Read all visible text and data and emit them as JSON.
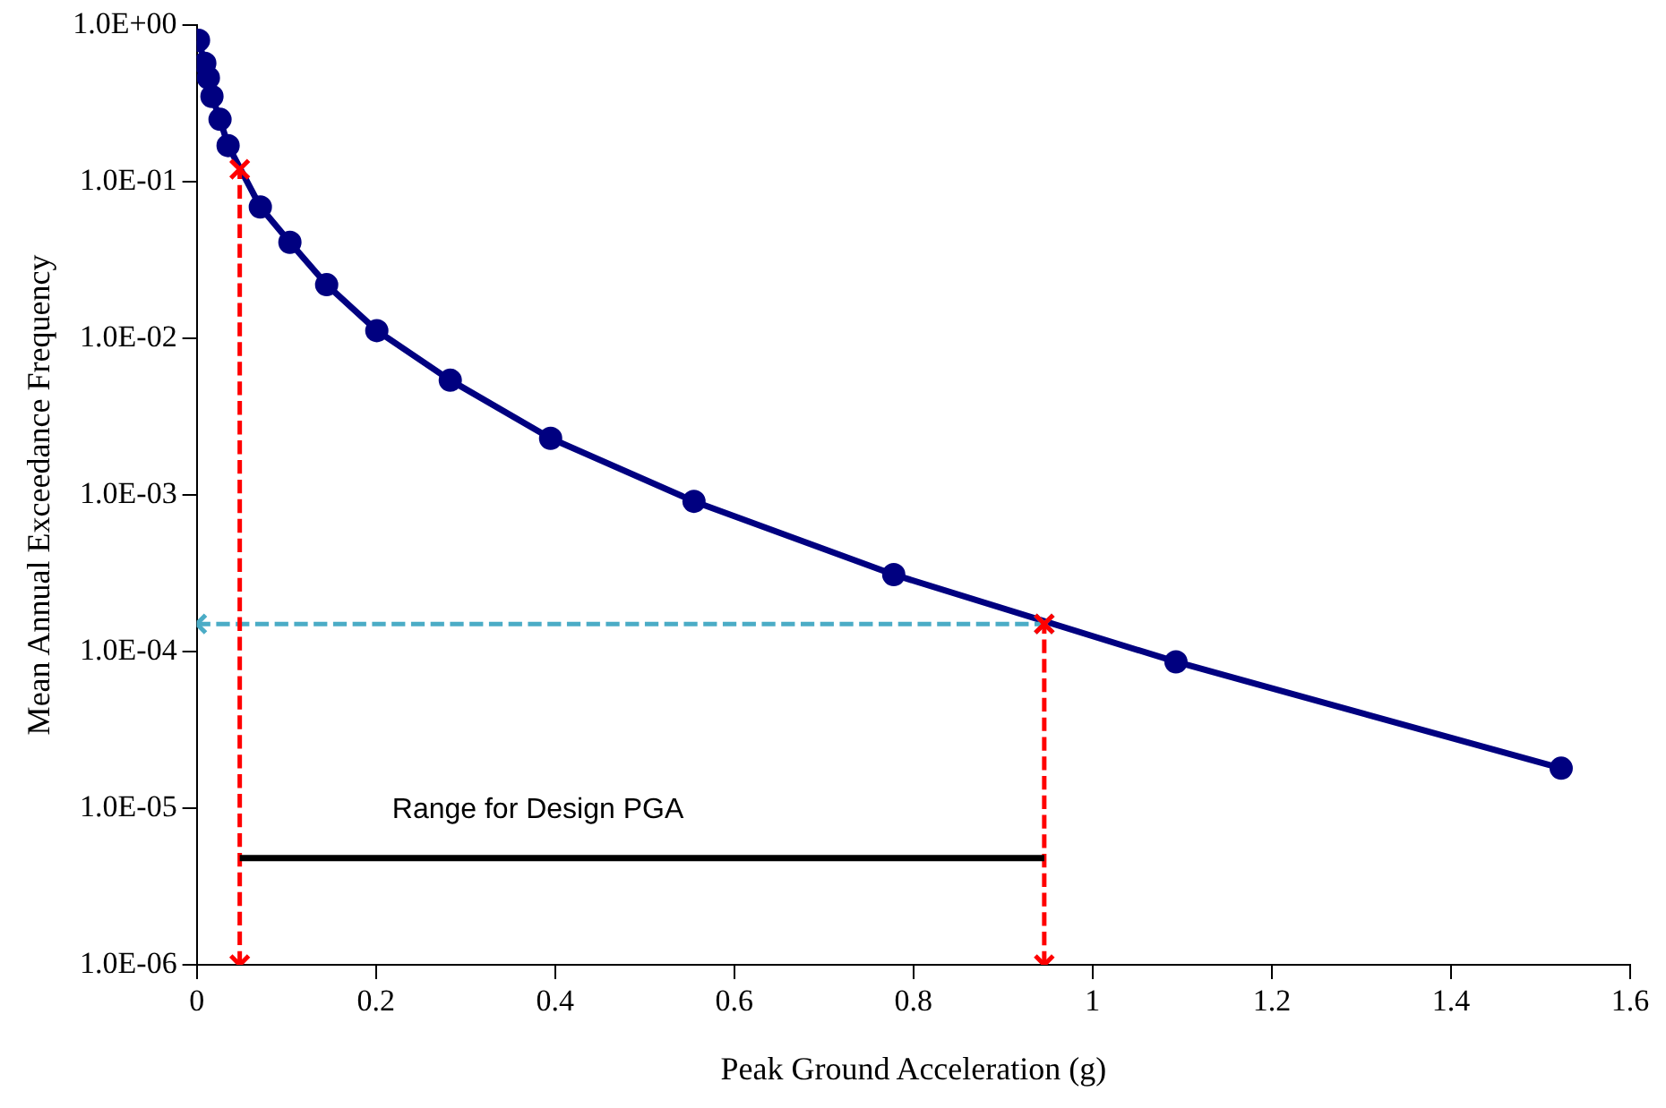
{
  "chart_data": {
    "type": "line",
    "xlabel": "Peak Ground Acceleration (g)",
    "ylabel": "Mean Annual Exceedance Frequency",
    "log": "y",
    "grid": false,
    "legend": false,
    "xlim": [
      0,
      1.6
    ],
    "xticks": [
      0,
      0.2,
      0.4,
      0.6,
      0.8,
      1,
      1.2,
      1.4,
      1.6
    ],
    "ylim": [
      1e-06,
      1
    ],
    "yticks": [
      {
        "value": 1e-06,
        "label": "1.0E-06"
      },
      {
        "value": 1e-05,
        "label": "1.0E-05"
      },
      {
        "value": 0.0001,
        "label": "1.0E-04"
      },
      {
        "value": 0.001,
        "label": "1.0E-03"
      },
      {
        "value": 0.01,
        "label": "1.0E-02"
      },
      {
        "value": 0.1,
        "label": "1.0E-01"
      },
      {
        "value": 1,
        "label": "1.0E+00"
      }
    ],
    "series": [
      {
        "color": "#000080",
        "marker": "circle",
        "line_style": "solid",
        "x": [
          0.002,
          0.009,
          0.013,
          0.017,
          0.026,
          0.035,
          0.071,
          0.104,
          0.145,
          0.201,
          0.283,
          0.395,
          0.555,
          0.778,
          1.093,
          1.523
        ],
        "values": [
          0.8,
          0.57,
          0.46,
          0.35,
          0.25,
          0.17,
          0.069,
          0.041,
          0.022,
          0.0112,
          0.0054,
          0.0023,
          0.00091,
          0.00031,
          8.6e-05,
          1.8e-05
        ]
      },
      {
        "color": "#4bacc6",
        "marker": "cross",
        "line_style": "dashed",
        "x": [
          0,
          0.946
        ],
        "values": [
          0.00015,
          0.00015
        ]
      },
      {
        "color": "#ff0000",
        "marker": "cross",
        "line_style": "dashed",
        "x": [
          0.048,
          0.048
        ],
        "values": [
          1e-06,
          0.12
        ]
      },
      {
        "color": "#ff0000",
        "marker": "cross",
        "line_style": "dashed",
        "x": [
          0.946,
          0.946
        ],
        "values": [
          1e-06,
          0.00015
        ]
      },
      {
        "color": "#000000",
        "marker": "none",
        "line_style": "solid",
        "x": [
          0.048,
          0.946
        ],
        "values": [
          4.8e-06,
          4.8e-06
        ]
      }
    ],
    "annotations": [
      "Range for Design PGA"
    ]
  }
}
